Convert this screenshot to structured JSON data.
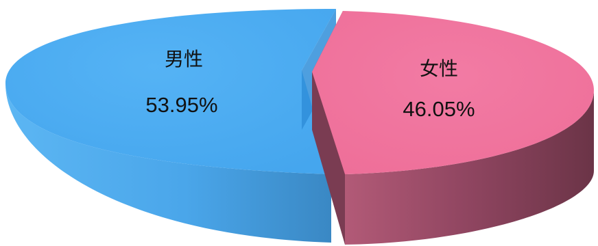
{
  "chart_data": {
    "type": "pie",
    "style": "3d-exploded",
    "categories": [
      "男性",
      "女性"
    ],
    "values": [
      53.95,
      46.05
    ],
    "value_labels": [
      "53.95%",
      "46.05%"
    ],
    "colors": {
      "男性": "#4aaaf0",
      "女性": "#f0729c"
    },
    "side_colors": {
      "男性": "#3f94d2",
      "女性": "#8c4257"
    },
    "legend": "none",
    "title": ""
  }
}
